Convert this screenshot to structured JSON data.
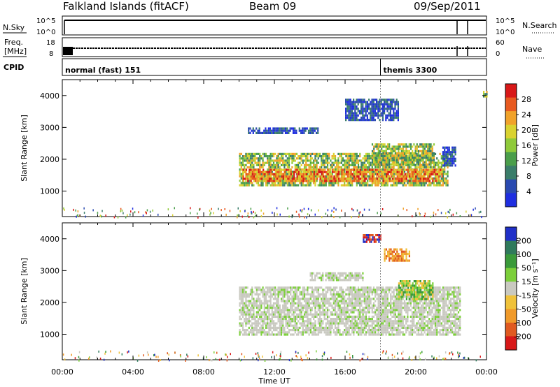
{
  "header": {
    "station": "Falkland Islands (fitACF)",
    "beam": "Beam 09",
    "date": "09/Sep/2011"
  },
  "strips": {
    "nsky_label": "N.Sky",
    "nsky_ticks": [
      "10^5",
      "10^0"
    ],
    "nsearch_label": "N.Search",
    "nsearch_ticks": [
      "10^5",
      "10^0"
    ],
    "freq_label_1": "Freq.",
    "freq_label_2": "[MHz]",
    "freq_ticks": [
      "18",
      "8"
    ],
    "nave_label": "Nave",
    "nave_ticks": [
      "60",
      "0"
    ],
    "cpid_label": "CPID",
    "cpid_modes": [
      {
        "label": "normal (fast) 151",
        "start_hour": 0.0
      },
      {
        "label": "themis 3300",
        "start_hour": 18.0
      }
    ]
  },
  "chart_data": [
    {
      "type": "heatmap",
      "panel": "power",
      "ylabel": "Slant Range [km]",
      "ylim": [
        200,
        4500
      ],
      "yticks": [
        "4000",
        "3000",
        "2000",
        "1000"
      ],
      "xlim_hours": [
        0,
        24
      ],
      "colorbar_label": "Power [dB]",
      "colorbar_ticks": [
        "28",
        "24",
        "20",
        "16",
        "12",
        "8",
        "4"
      ],
      "colorbar_colors": [
        "#1f2ee0",
        "#2a4ab0",
        "#3a7d6a",
        "#4a9e4a",
        "#8fca3a",
        "#d9d230",
        "#f0a22a",
        "#e85a20",
        "#d81818"
      ],
      "bands": [
        {
          "t_start": 10.0,
          "t_end": 21.8,
          "r_low": 1150,
          "r_high": 2200,
          "level": "mid"
        },
        {
          "t_start": 10.2,
          "t_end": 21.5,
          "r_low": 1300,
          "r_high": 1700,
          "level": "high"
        },
        {
          "t_start": 17.5,
          "t_end": 21.0,
          "r_low": 1800,
          "r_high": 2500,
          "level": "mid"
        },
        {
          "t_start": 10.5,
          "t_end": 14.5,
          "r_low": 2800,
          "r_high": 3000,
          "level": "low"
        },
        {
          "t_start": 16.0,
          "t_end": 19.0,
          "r_low": 3200,
          "r_high": 3900,
          "level": "low"
        },
        {
          "t_start": 21.5,
          "t_end": 22.2,
          "r_low": 1800,
          "r_high": 2400,
          "level": "low"
        },
        {
          "t_start": 23.8,
          "t_end": 24.0,
          "r_low": 3950,
          "r_high": 4150,
          "level": "mid"
        }
      ],
      "ground_scatter_range_km": [
        200,
        500
      ]
    },
    {
      "type": "heatmap",
      "panel": "velocity",
      "ylabel": "Slant Range [km]",
      "ylim": [
        200,
        4500
      ],
      "yticks": [
        "4000",
        "3000",
        "2000",
        "1000"
      ],
      "xlim_hours": [
        0,
        24
      ],
      "xticks": [
        "00:00",
        "04:00",
        "08:00",
        "12:00",
        "16:00",
        "20:00",
        "00:00"
      ],
      "xlabel": "Time UT",
      "colorbar_label": "Velocity [m s⁻¹]",
      "colorbar_ticks": [
        "200",
        "100",
        "50",
        "15",
        "-15",
        "-50",
        "-100",
        "-200"
      ],
      "colorbar_colors": [
        "#2030c8",
        "#2f7a5c",
        "#3a9a3a",
        "#7ccf3a",
        "#c9c9c0",
        "#f0c23a",
        "#f09a2a",
        "#e05a20",
        "#d81818"
      ],
      "bands": [
        {
          "t_start": 10.0,
          "t_end": 22.5,
          "r_low": 1000,
          "r_high": 2500,
          "level": "ground"
        },
        {
          "t_start": 14.0,
          "t_end": 17.0,
          "r_low": 2700,
          "r_high": 2950,
          "level": "ground"
        },
        {
          "t_start": 18.2,
          "t_end": 19.6,
          "r_low": 3300,
          "r_high": 3700,
          "level": "negative"
        },
        {
          "t_start": 17.0,
          "t_end": 18.0,
          "r_low": 3900,
          "r_high": 4150,
          "level": "strong-negative"
        },
        {
          "t_start": 19.0,
          "t_end": 21.0,
          "r_low": 2100,
          "r_high": 2700,
          "level": "positive"
        }
      ],
      "ground_scatter_range_km": [
        200,
        500
      ]
    }
  ]
}
